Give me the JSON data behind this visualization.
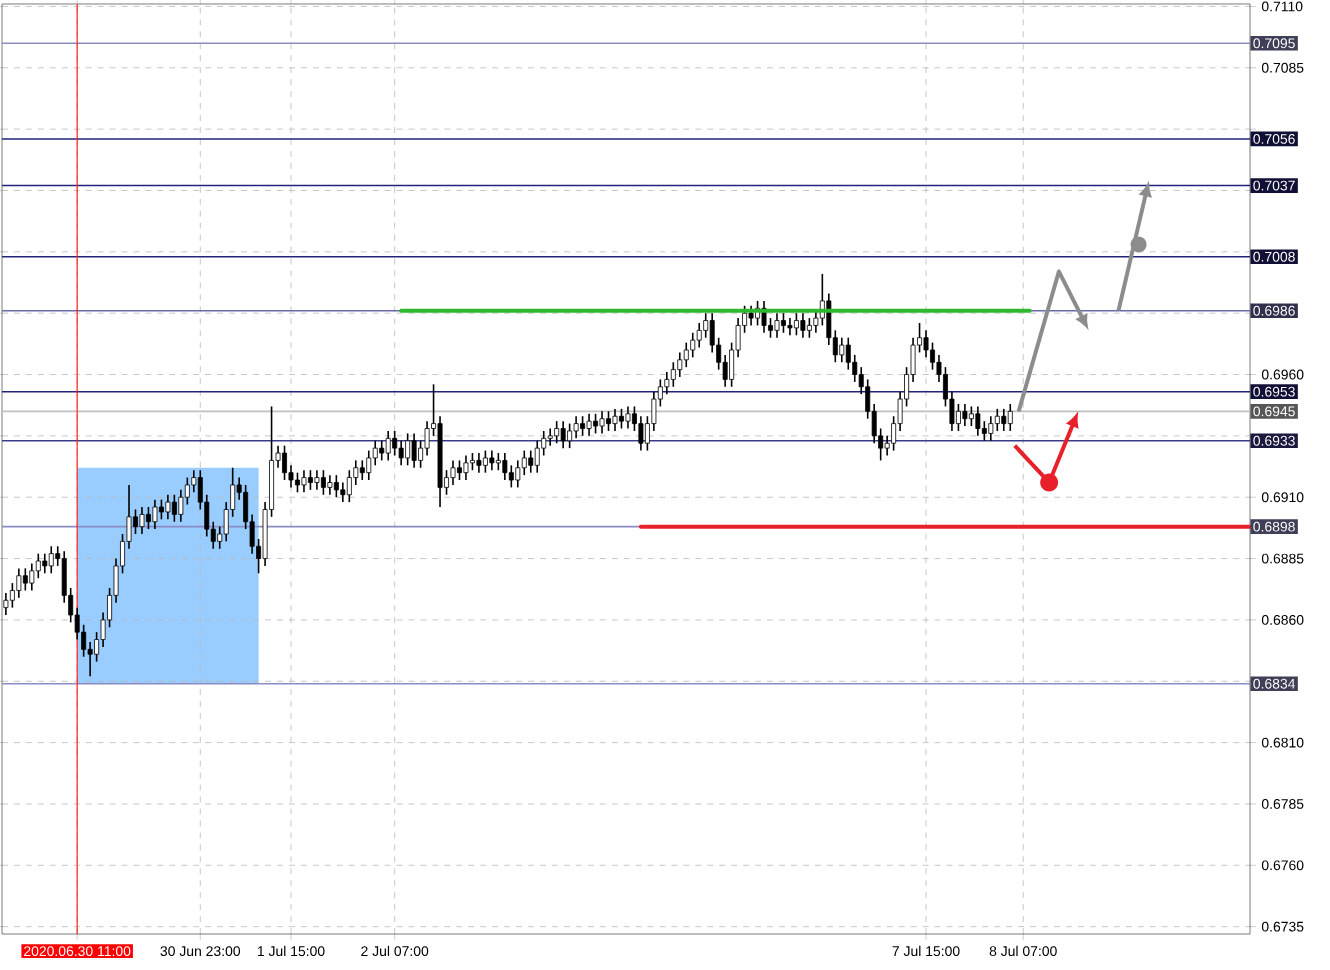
{
  "chart_data": {
    "type": "candlestick",
    "categories": [
      null,
      null,
      null,
      null,
      null,
      null,
      null,
      null,
      null,
      null,
      null,
      "2020.06.30 11:00",
      null,
      null,
      null,
      null,
      null,
      null,
      null,
      null,
      null,
      null,
      null,
      null,
      null,
      null,
      null,
      null,
      null,
      null,
      "30 Jun 23:00",
      null,
      null,
      null,
      null,
      null,
      null,
      null,
      null,
      null,
      null,
      null,
      null,
      null,
      "1 Jul 15:00",
      null,
      null,
      null,
      null,
      null,
      null,
      null,
      null,
      null,
      null,
      null,
      null,
      null,
      null,
      null,
      "2 Jul 07:00",
      null,
      null,
      null,
      null,
      null,
      null,
      null,
      null,
      null,
      null,
      null,
      null,
      null,
      null,
      null,
      null,
      null,
      null,
      null,
      null,
      null,
      null,
      null,
      null,
      null,
      null,
      null,
      null,
      null,
      null,
      null,
      null,
      null,
      null,
      null,
      null,
      null,
      null,
      null,
      null,
      null,
      null,
      null,
      null,
      null,
      null,
      null,
      null,
      null,
      null,
      null,
      null,
      null,
      null,
      null,
      null,
      null,
      null,
      null,
      null,
      null,
      null,
      null,
      null,
      null,
      null,
      null,
      null,
      null,
      null,
      null,
      null,
      null,
      null,
      null,
      null,
      null,
      null,
      null,
      null,
      null,
      "7 Jul 15:00",
      null,
      null,
      null,
      null,
      null,
      null,
      null,
      null,
      null,
      null,
      null,
      null,
      null,
      null,
      "8 Jul 07:00",
      null,
      null,
      null,
      null,
      null,
      null,
      null,
      null,
      null,
      null,
      null,
      null,
      null,
      null,
      null,
      null,
      null,
      null,
      null,
      null,
      null,
      null,
      null,
      null,
      null,
      null,
      null,
      null,
      null,
      null,
      null,
      null,
      null,
      null,
      null
    ],
    "ohlc": [
      [
        0.6865,
        0.6871,
        0.6862,
        0.6868
      ],
      [
        0.6868,
        0.6875,
        0.6865,
        0.6872
      ],
      [
        0.6872,
        0.6881,
        0.6869,
        0.6878
      ],
      [
        0.6878,
        0.6881,
        0.6872,
        0.6875
      ],
      [
        0.6875,
        0.6883,
        0.6872,
        0.688
      ],
      [
        0.688,
        0.6887,
        0.6877,
        0.6884
      ],
      [
        0.6884,
        0.6887,
        0.6879,
        0.6882
      ],
      [
        0.6882,
        0.689,
        0.6879,
        0.6887
      ],
      [
        0.6887,
        0.689,
        0.6882,
        0.6885
      ],
      [
        0.6885,
        0.6888,
        0.6867,
        0.687
      ],
      [
        0.687,
        0.6873,
        0.6859,
        0.6862
      ],
      [
        0.6862,
        0.6865,
        0.6852,
        0.6855
      ],
      [
        0.6855,
        0.6858,
        0.6845,
        0.6848
      ],
      [
        0.6848,
        0.6851,
        0.6837,
        0.6846
      ],
      [
        0.6846,
        0.6855,
        0.6843,
        0.6852
      ],
      [
        0.6852,
        0.6863,
        0.6849,
        0.686
      ],
      [
        0.686,
        0.6873,
        0.6857,
        0.687
      ],
      [
        0.687,
        0.6885,
        0.6867,
        0.6882
      ],
      [
        0.6882,
        0.6895,
        0.6879,
        0.6892
      ],
      [
        0.6892,
        0.6915,
        0.6889,
        0.6902
      ],
      [
        0.6902,
        0.6905,
        0.6895,
        0.6898
      ],
      [
        0.6898,
        0.6906,
        0.6895,
        0.6903
      ],
      [
        0.6903,
        0.6906,
        0.6897,
        0.69
      ],
      [
        0.69,
        0.6909,
        0.6897,
        0.6906
      ],
      [
        0.6906,
        0.6909,
        0.6901,
        0.6904
      ],
      [
        0.6904,
        0.6911,
        0.6901,
        0.6908
      ],
      [
        0.6908,
        0.6911,
        0.69,
        0.6903
      ],
      [
        0.6903,
        0.6913,
        0.69,
        0.691
      ],
      [
        0.691,
        0.6918,
        0.6907,
        0.6915
      ],
      [
        0.6915,
        0.6921,
        0.6912,
        0.6918
      ],
      [
        0.6918,
        0.6921,
        0.6905,
        0.6908
      ],
      [
        0.6908,
        0.6911,
        0.6894,
        0.6897
      ],
      [
        0.6897,
        0.69,
        0.6889,
        0.6892
      ],
      [
        0.6892,
        0.6898,
        0.6889,
        0.6895
      ],
      [
        0.6895,
        0.6908,
        0.6892,
        0.6905
      ],
      [
        0.6905,
        0.6922,
        0.6902,
        0.6915
      ],
      [
        0.6915,
        0.6918,
        0.6909,
        0.6912
      ],
      [
        0.6912,
        0.6915,
        0.6897,
        0.69
      ],
      [
        0.69,
        0.6903,
        0.6887,
        0.689
      ],
      [
        0.689,
        0.6893,
        0.6879,
        0.6885
      ],
      [
        0.6885,
        0.6908,
        0.6882,
        0.6905
      ],
      [
        0.6905,
        0.6947,
        0.6902,
        0.6925
      ],
      [
        0.6925,
        0.6931,
        0.6922,
        0.6928
      ],
      [
        0.6928,
        0.6931,
        0.6917,
        0.692
      ],
      [
        0.692,
        0.6923,
        0.6914,
        0.6917
      ],
      [
        0.6917,
        0.692,
        0.6912,
        0.6915
      ],
      [
        0.6915,
        0.6921,
        0.6912,
        0.6918
      ],
      [
        0.6918,
        0.6921,
        0.6913,
        0.6916
      ],
      [
        0.6916,
        0.6921,
        0.6913,
        0.6918
      ],
      [
        0.6918,
        0.6921,
        0.6911,
        0.6914
      ],
      [
        0.6914,
        0.6919,
        0.6911,
        0.6916
      ],
      [
        0.6916,
        0.6919,
        0.691,
        0.6913
      ],
      [
        0.6913,
        0.6916,
        0.6908,
        0.6911
      ],
      [
        0.6911,
        0.6921,
        0.6908,
        0.6918
      ],
      [
        0.6918,
        0.6925,
        0.6915,
        0.6922
      ],
      [
        0.6922,
        0.6925,
        0.6917,
        0.692
      ],
      [
        0.692,
        0.6929,
        0.6917,
        0.6926
      ],
      [
        0.6926,
        0.6933,
        0.6923,
        0.693
      ],
      [
        0.693,
        0.6933,
        0.6925,
        0.6928
      ],
      [
        0.6928,
        0.6937,
        0.6925,
        0.6934
      ],
      [
        0.6934,
        0.6937,
        0.6927,
        0.693
      ],
      [
        0.693,
        0.6933,
        0.6923,
        0.6926
      ],
      [
        0.6926,
        0.6936,
        0.6923,
        0.6933
      ],
      [
        0.6933,
        0.6936,
        0.6922,
        0.6925
      ],
      [
        0.6925,
        0.6933,
        0.6922,
        0.693
      ],
      [
        0.693,
        0.6941,
        0.6927,
        0.6938
      ],
      [
        0.6938,
        0.6956,
        0.6935,
        0.694
      ],
      [
        0.694,
        0.6943,
        0.6906,
        0.6914
      ],
      [
        0.6914,
        0.6921,
        0.6911,
        0.6918
      ],
      [
        0.6918,
        0.6925,
        0.6915,
        0.6922
      ],
      [
        0.6922,
        0.6925,
        0.6917,
        0.692
      ],
      [
        0.692,
        0.6927,
        0.6917,
        0.6924
      ],
      [
        0.6924,
        0.6928,
        0.6921,
        0.6925
      ],
      [
        0.6925,
        0.6928,
        0.692,
        0.6923
      ],
      [
        0.6923,
        0.6929,
        0.692,
        0.6926
      ],
      [
        0.6926,
        0.6929,
        0.6921,
        0.6924
      ],
      [
        0.6924,
        0.6928,
        0.6921,
        0.6925
      ],
      [
        0.6925,
        0.6928,
        0.6917,
        0.692
      ],
      [
        0.692,
        0.6923,
        0.6914,
        0.6917
      ],
      [
        0.6917,
        0.6925,
        0.6914,
        0.6922
      ],
      [
        0.6922,
        0.6929,
        0.6919,
        0.6926
      ],
      [
        0.6926,
        0.6929,
        0.692,
        0.6923
      ],
      [
        0.6923,
        0.6933,
        0.692,
        0.693
      ],
      [
        0.693,
        0.6937,
        0.6927,
        0.6934
      ],
      [
        0.6934,
        0.6938,
        0.6931,
        0.6935
      ],
      [
        0.6935,
        0.6941,
        0.6932,
        0.6938
      ],
      [
        0.6938,
        0.6941,
        0.693,
        0.6933
      ],
      [
        0.6933,
        0.694,
        0.693,
        0.6937
      ],
      [
        0.6937,
        0.6943,
        0.6934,
        0.694
      ],
      [
        0.694,
        0.6943,
        0.6935,
        0.6938
      ],
      [
        0.6938,
        0.6944,
        0.6935,
        0.6941
      ],
      [
        0.6941,
        0.6944,
        0.6936,
        0.6939
      ],
      [
        0.6939,
        0.6945,
        0.6936,
        0.6942
      ],
      [
        0.6942,
        0.6945,
        0.6937,
        0.694
      ],
      [
        0.694,
        0.6946,
        0.6937,
        0.6943
      ],
      [
        0.6943,
        0.6946,
        0.6938,
        0.6941
      ],
      [
        0.6941,
        0.6947,
        0.6938,
        0.6944
      ],
      [
        0.6944,
        0.6947,
        0.6937,
        0.694
      ],
      [
        0.694,
        0.6943,
        0.6929,
        0.6932
      ],
      [
        0.6932,
        0.6943,
        0.6929,
        0.694
      ],
      [
        0.694,
        0.6953,
        0.6937,
        0.695
      ],
      [
        0.695,
        0.6958,
        0.6947,
        0.6955
      ],
      [
        0.6955,
        0.6961,
        0.6952,
        0.6958
      ],
      [
        0.6958,
        0.6965,
        0.6955,
        0.6962
      ],
      [
        0.6962,
        0.6969,
        0.6959,
        0.6966
      ],
      [
        0.6966,
        0.6973,
        0.6963,
        0.697
      ],
      [
        0.697,
        0.6977,
        0.6967,
        0.6974
      ],
      [
        0.6974,
        0.6981,
        0.6971,
        0.6978
      ],
      [
        0.6978,
        0.6985,
        0.6975,
        0.6982
      ],
      [
        0.6982,
        0.6985,
        0.6969,
        0.6972
      ],
      [
        0.6972,
        0.6975,
        0.6962,
        0.6965
      ],
      [
        0.6965,
        0.6968,
        0.6955,
        0.6958
      ],
      [
        0.6958,
        0.6973,
        0.6955,
        0.697
      ],
      [
        0.697,
        0.6983,
        0.6967,
        0.698
      ],
      [
        0.698,
        0.6988,
        0.6977,
        0.6985
      ],
      [
        0.6985,
        0.6988,
        0.698,
        0.6983
      ],
      [
        0.6983,
        0.699,
        0.698,
        0.6987
      ],
      [
        0.6987,
        0.699,
        0.6977,
        0.698
      ],
      [
        0.698,
        0.6983,
        0.6975,
        0.6978
      ],
      [
        0.6978,
        0.6985,
        0.6975,
        0.6982
      ],
      [
        0.6982,
        0.6985,
        0.6977,
        0.698
      ],
      [
        0.698,
        0.6983,
        0.6976,
        0.6979
      ],
      [
        0.6979,
        0.6985,
        0.6976,
        0.6982
      ],
      [
        0.6982,
        0.6985,
        0.6975,
        0.6978
      ],
      [
        0.6978,
        0.6983,
        0.6975,
        0.698
      ],
      [
        0.698,
        0.6986,
        0.6977,
        0.6983
      ],
      [
        0.6983,
        0.7001,
        0.698,
        0.699
      ],
      [
        0.699,
        0.6993,
        0.6972,
        0.6975
      ],
      [
        0.6975,
        0.6978,
        0.6965,
        0.6968
      ],
      [
        0.6968,
        0.6975,
        0.6965,
        0.6972
      ],
      [
        0.6972,
        0.6975,
        0.6962,
        0.6965
      ],
      [
        0.6965,
        0.6968,
        0.6957,
        0.696
      ],
      [
        0.696,
        0.6963,
        0.6952,
        0.6955
      ],
      [
        0.6955,
        0.6958,
        0.6942,
        0.6945
      ],
      [
        0.6945,
        0.6948,
        0.6932,
        0.6935
      ],
      [
        0.6935,
        0.6938,
        0.6925,
        0.693
      ],
      [
        0.693,
        0.6935,
        0.6927,
        0.6932
      ],
      [
        0.6932,
        0.6943,
        0.6929,
        0.694
      ],
      [
        0.694,
        0.6953,
        0.6937,
        0.695
      ],
      [
        0.695,
        0.6963,
        0.6947,
        0.696
      ],
      [
        0.696,
        0.6975,
        0.6957,
        0.6972
      ],
      [
        0.6972,
        0.6981,
        0.6969,
        0.6975
      ],
      [
        0.6975,
        0.6978,
        0.6967,
        0.697
      ],
      [
        0.697,
        0.6973,
        0.6962,
        0.6965
      ],
      [
        0.6965,
        0.6968,
        0.6957,
        0.696
      ],
      [
        0.696,
        0.6963,
        0.6947,
        0.695
      ],
      [
        0.695,
        0.6953,
        0.6937,
        0.694
      ],
      [
        0.694,
        0.6948,
        0.6937,
        0.6945
      ],
      [
        0.6945,
        0.6948,
        0.6939,
        0.6942
      ],
      [
        0.6942,
        0.6947,
        0.6939,
        0.6944
      ],
      [
        0.6944,
        0.6947,
        0.6935,
        0.6938
      ],
      [
        0.6938,
        0.6941,
        0.6933,
        0.6936
      ],
      [
        0.6936,
        0.6943,
        0.6933,
        0.694
      ],
      [
        0.694,
        0.6946,
        0.6937,
        0.6943
      ],
      [
        0.6943,
        0.6946,
        0.6937,
        0.694
      ],
      [
        0.694,
        0.6948,
        0.6937,
        0.6945
      ],
      null,
      null,
      null,
      null,
      null,
      null,
      null,
      null,
      null,
      null,
      null,
      null,
      null,
      null,
      null,
      null,
      null,
      null,
      null,
      null,
      null,
      null,
      null,
      null,
      null,
      null,
      null,
      null,
      null,
      null,
      null,
      null,
      null,
      null,
      null,
      null,
      null
    ],
    "series": [
      {
        "type": "line",
        "color": "#2eb82e",
        "values": [
          null,
          null,
          null,
          null,
          null,
          null,
          null,
          null,
          null,
          null,
          null,
          null,
          null,
          null,
          null,
          null,
          null,
          null,
          null,
          null,
          null,
          null,
          null,
          null,
          null,
          null,
          null,
          null,
          null,
          null,
          null,
          null,
          null,
          null,
          null,
          null,
          null,
          null,
          null,
          null,
          null,
          null,
          null,
          null,
          null,
          null,
          null,
          null,
          null,
          null,
          null,
          null,
          null,
          null,
          null,
          null,
          null,
          null,
          null,
          null,
          null,
          0.6986,
          0.6986,
          0.6986,
          0.6986,
          0.6986,
          0.6986,
          0.6986,
          0.6986,
          0.6986,
          0.6986,
          0.6986,
          0.6986,
          0.6986,
          0.6986,
          0.6986,
          0.6986,
          0.6986,
          0.6986,
          0.6986,
          0.6986,
          0.6986,
          0.6986,
          0.6986,
          0.6986,
          0.6986,
          0.6986,
          0.6986,
          0.6986,
          0.6986,
          0.6986,
          0.6986,
          0.6986,
          0.6986,
          0.6986,
          0.6986,
          0.6986,
          0.6986,
          0.6986,
          0.6986,
          0.6986,
          0.6986,
          0.6986,
          0.6986,
          0.6986,
          0.6986,
          0.6986,
          0.6986,
          0.6986,
          0.6986,
          0.6986,
          0.6986,
          0.6986,
          0.6986,
          0.6986,
          0.6986,
          0.6986,
          0.6986,
          0.6986,
          0.6986,
          0.6986,
          0.6986,
          0.6986,
          0.6986,
          0.6986,
          0.6986,
          0.6986,
          0.6986,
          0.6986,
          0.6986,
          0.6986,
          0.6986,
          0.6986,
          0.6986,
          0.6986,
          0.6986,
          0.6986,
          0.6986,
          0.6986,
          0.6986,
          0.6986,
          0.6986,
          0.6986,
          0.6986,
          0.6986,
          0.6986,
          0.6986,
          0.6986,
          0.6986,
          0.6986,
          0.6986,
          0.6986,
          0.6986,
          0.6986,
          0.6986,
          0.6986,
          0.6986,
          0.6986,
          0.6986,
          null,
          null,
          null,
          null,
          null,
          null,
          null,
          null,
          null,
          null,
          null,
          null,
          null,
          null,
          null,
          null,
          null,
          null,
          null,
          null,
          null,
          null,
          null,
          null,
          null,
          null,
          null,
          null,
          null,
          null,
          null,
          null,
          null,
          null
        ]
      },
      {
        "type": "line",
        "color": "#e8202a",
        "values": [
          null,
          null,
          null,
          null,
          null,
          null,
          null,
          null,
          null,
          null,
          null,
          null,
          null,
          null,
          null,
          null,
          null,
          null,
          null,
          null,
          null,
          null,
          null,
          null,
          null,
          null,
          null,
          null,
          null,
          null,
          null,
          null,
          null,
          null,
          null,
          null,
          null,
          null,
          null,
          null,
          null,
          null,
          null,
          null,
          null,
          null,
          null,
          null,
          null,
          null,
          null,
          null,
          null,
          null,
          null,
          null,
          null,
          null,
          null,
          null,
          null,
          null,
          null,
          null,
          null,
          null,
          null,
          null,
          null,
          null,
          null,
          null,
          null,
          null,
          null,
          null,
          null,
          null,
          null,
          null,
          null,
          null,
          null,
          null,
          null,
          null,
          null,
          null,
          null,
          null,
          null,
          null,
          null,
          null,
          null,
          null,
          null,
          null,
          0.6898,
          0.6898,
          0.6898,
          0.6898,
          0.6898,
          0.6898,
          0.6898,
          0.6898,
          0.6898,
          0.6898,
          0.6898,
          0.6898,
          0.6898,
          0.6898,
          0.6898,
          0.6898,
          0.6898,
          0.6898,
          0.6898,
          0.6898,
          0.6898,
          0.6898,
          0.6898,
          0.6898,
          0.6898,
          0.6898,
          0.6898,
          0.6898,
          0.6898,
          0.6898,
          0.6898,
          0.6898,
          0.6898,
          0.6898,
          0.6898,
          0.6898,
          0.6898,
          0.6898,
          0.6898,
          0.6898,
          0.6898,
          0.6898,
          0.6898,
          0.6898,
          0.6898,
          0.6898,
          0.6898,
          0.6898,
          0.6898,
          0.6898,
          0.6898,
          0.6898,
          0.6898,
          0.6898,
          0.6898,
          0.6898,
          0.6898,
          0.6898,
          0.6898,
          0.6898,
          0.6898,
          0.6898,
          0.6898,
          0.6898,
          0.6898,
          0.6898,
          0.6898,
          0.6898,
          0.6898,
          0.6898,
          0.6898,
          0.6898,
          0.6898,
          0.6898,
          0.6898,
          0.6898,
          0.6898,
          0.6898,
          0.6898,
          0.6898,
          0.6898,
          0.6898,
          0.6898,
          0.6898,
          0.6898,
          0.6898,
          0.6898,
          0.6898,
          0.6898,
          0.6898,
          0.6898,
          0.6898,
          0.6898,
          0.6898,
          0.6898
        ]
      }
    ],
    "ylim": [
      0.6732,
      0.7111
    ],
    "yticks": [
      {
        "value": 0.711,
        "label": "0.7110"
      },
      {
        "value": 0.7085,
        "label": "0.7085"
      },
      {
        "value": 0.706,
        "label": null
      },
      {
        "value": 0.7035,
        "label": null
      },
      {
        "value": 0.701,
        "label": null
      },
      {
        "value": 0.6985,
        "label": null
      },
      {
        "value": 0.696,
        "label": "0.6960"
      },
      {
        "value": 0.6935,
        "label": null
      },
      {
        "value": 0.691,
        "label": "0.6910"
      },
      {
        "value": 0.6885,
        "label": "0.6885"
      },
      {
        "value": 0.686,
        "label": "0.6860"
      },
      {
        "value": 0.6835,
        "label": null
      },
      {
        "value": 0.681,
        "label": "0.6810"
      },
      {
        "value": 0.6785,
        "label": "0.6785"
      },
      {
        "value": 0.676,
        "label": "0.6760"
      },
      {
        "value": 0.6735,
        "label": "0.6735"
      }
    ],
    "ref_lines": [
      {
        "axis": "y",
        "value": 0.7095,
        "label": "0.7095",
        "color": "#8c8cc4"
      },
      {
        "axis": "y",
        "value": 0.7056,
        "label": "0.7056",
        "color": "#23237a"
      },
      {
        "axis": "y",
        "value": 0.7037,
        "label": "0.7037",
        "color": "#23237a"
      },
      {
        "axis": "y",
        "value": 0.7008,
        "label": "0.7008",
        "color": "#23237a"
      },
      {
        "axis": "y",
        "value": 0.6986,
        "label": "0.6986",
        "color": "#6a6aaa"
      },
      {
        "axis": "y",
        "value": 0.6953,
        "label": "0.6953",
        "color": "#23237a"
      },
      {
        "axis": "y",
        "value": 0.6945,
        "label": "0.6945",
        "color": "#c0c0c0"
      },
      {
        "axis": "y",
        "value": 0.6933,
        "label": "0.6933",
        "color": "#3a3a8a"
      },
      {
        "axis": "y",
        "value": 0.6898,
        "label": "0.6898",
        "color": "#8c8cc4"
      },
      {
        "axis": "y",
        "value": 0.6834,
        "label": "0.6834",
        "color": "#8c8cc4"
      },
      {
        "axis": "x",
        "value": "2020.06.30 11:00",
        "color": "#ff2020"
      }
    ],
    "grid": true
  }
}
